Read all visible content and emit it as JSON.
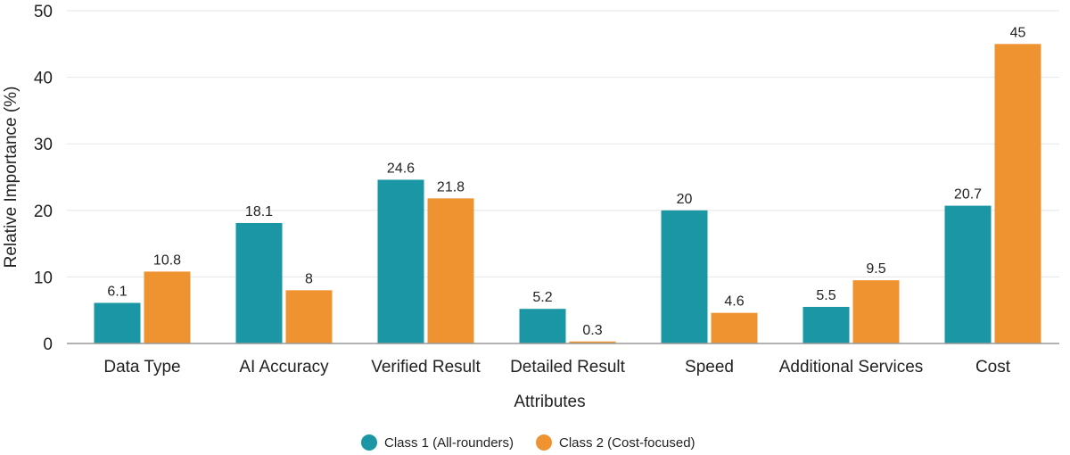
{
  "chart_data": {
    "type": "bar",
    "title": "",
    "xlabel": "Attributes",
    "ylabel": "Relative Importance (%)",
    "ylim": [
      0,
      50
    ],
    "yticks": [
      0,
      10,
      20,
      30,
      40,
      50
    ],
    "grid": true,
    "legend_position": "bottom",
    "categories": [
      "Data Type",
      "AI Accuracy",
      "Verified Result",
      "Detailed Result",
      "Speed",
      "Additional Services",
      "Cost"
    ],
    "series": [
      {
        "name": "Class 1 (All-rounders)",
        "color": "#1a96a4",
        "values": [
          6.1,
          18.1,
          24.6,
          5.2,
          20,
          5.5,
          20.7
        ]
      },
      {
        "name": "Class 2 (Cost-focused)",
        "color": "#ef9330",
        "values": [
          10.8,
          8,
          21.8,
          0.3,
          4.6,
          9.5,
          45
        ]
      }
    ]
  }
}
